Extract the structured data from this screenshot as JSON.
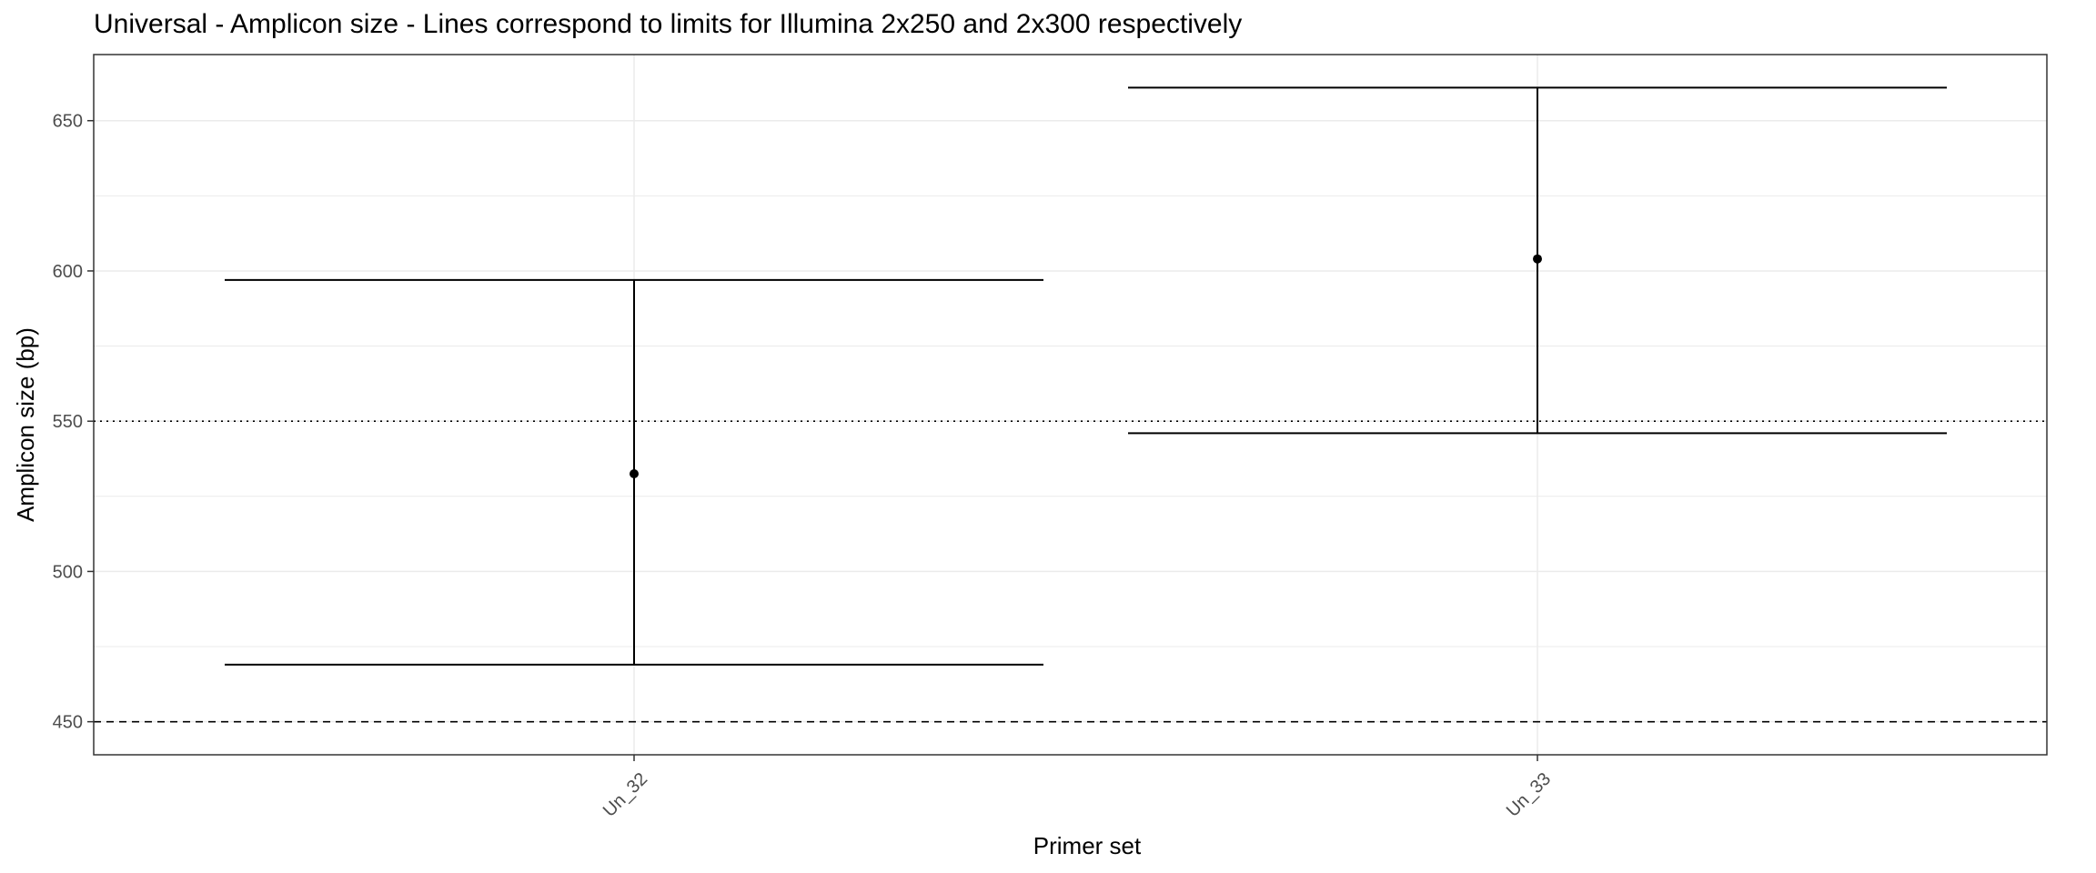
{
  "chart_data": {
    "type": "errorbar",
    "title": "Universal - Amplicon size - Lines correspond to limits for Illumina 2x250 and 2x300 respectively",
    "xlabel": "Primer set",
    "ylabel": "Amplicon size (bp)",
    "categories": [
      "Un_32",
      "Un_33"
    ],
    "points": [
      {
        "category": "Un_32",
        "mean": 532.5,
        "ymin": 469,
        "ymax": 597
      },
      {
        "category": "Un_33",
        "mean": 604,
        "ymin": 546,
        "ymax": 661
      }
    ],
    "y_ticks": [
      450,
      500,
      550,
      600,
      650
    ],
    "ylim": [
      439,
      672
    ],
    "reference_lines": [
      {
        "y": 450,
        "style": "dashed"
      },
      {
        "y": 550,
        "style": "dotted"
      }
    ],
    "grid": true,
    "legend": "none",
    "colors": {
      "line": "#000000",
      "grid": "#ebebeb",
      "panel_border": "#333333"
    }
  }
}
